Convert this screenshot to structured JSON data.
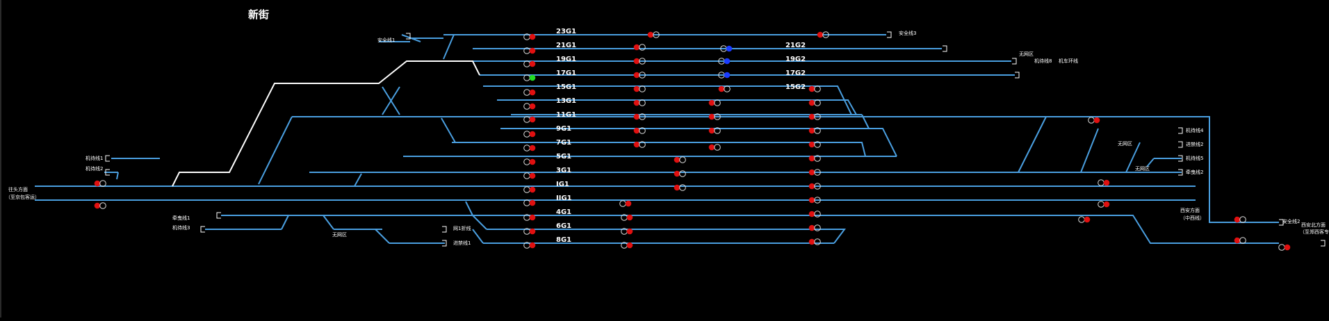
{
  "station": {
    "name": "新街"
  },
  "colors": {
    "track": "#4a9fe0",
    "route": "#ffffff",
    "signal_red": "#e01010",
    "signal_green": "#22dd22",
    "signal_blue": "#1a3cff",
    "signal_off": "#dddddd",
    "label": "#ffffff"
  },
  "tracks": [
    {
      "id": "23G1",
      "label": "23G1"
    },
    {
      "id": "21G1",
      "label": "21G1"
    },
    {
      "id": "19G1",
      "label": "19G1"
    },
    {
      "id": "17G1",
      "label": "17G1"
    },
    {
      "id": "15G1",
      "label": "15G1"
    },
    {
      "id": "13G1",
      "label": "13G1"
    },
    {
      "id": "11G1",
      "label": "11G1"
    },
    {
      "id": "9G1",
      "label": "9G1"
    },
    {
      "id": "7G1",
      "label": "7G1"
    },
    {
      "id": "5G1",
      "label": "5G1"
    },
    {
      "id": "3G1",
      "label": "3G1"
    },
    {
      "id": "IG1",
      "label": "IG1"
    },
    {
      "id": "IIG1",
      "label": "IIG1"
    },
    {
      "id": "4G1",
      "label": "4G1"
    },
    {
      "id": "6G1",
      "label": "6G1"
    },
    {
      "id": "8G1",
      "label": "8G1"
    }
  ],
  "right_tracks": [
    {
      "id": "21G2",
      "label": "21G2"
    },
    {
      "id": "19G2",
      "label": "19G2"
    },
    {
      "id": "17G2",
      "label": "17G2"
    },
    {
      "id": "15G2",
      "label": "15G2"
    }
  ],
  "side_labels": {
    "anquanxian1": "安全线1",
    "anquanxian3": "安全线3",
    "anquanxian2": "安全线2",
    "wuwangqu": "无网区",
    "jiyunxian8": "机待线8",
    "jichexunhuan": "机车环线",
    "jiyunxian1": "机待线1",
    "jiyunxian2": "机待线2",
    "jiyunxian3": "机待线3",
    "jiyunxian4": "机待线4",
    "jiyunxian5": "机待线5",
    "qianyinxian1": "牵曳线1",
    "qianyinxian2": "牵曳线2",
    "jinjixian1": "进禁线1",
    "jinjixian2": "进禁线2",
    "zhuanyongxian": "网1折线",
    "left_dir_1": "往头方面",
    "left_dir_2": "（至京包客运）",
    "right_dir_a1": "西安方面",
    "right_dir_a2": "（中西线）",
    "right_dir_b1": "西安北方面",
    "right_dir_b2": "（至郑西客专）"
  }
}
